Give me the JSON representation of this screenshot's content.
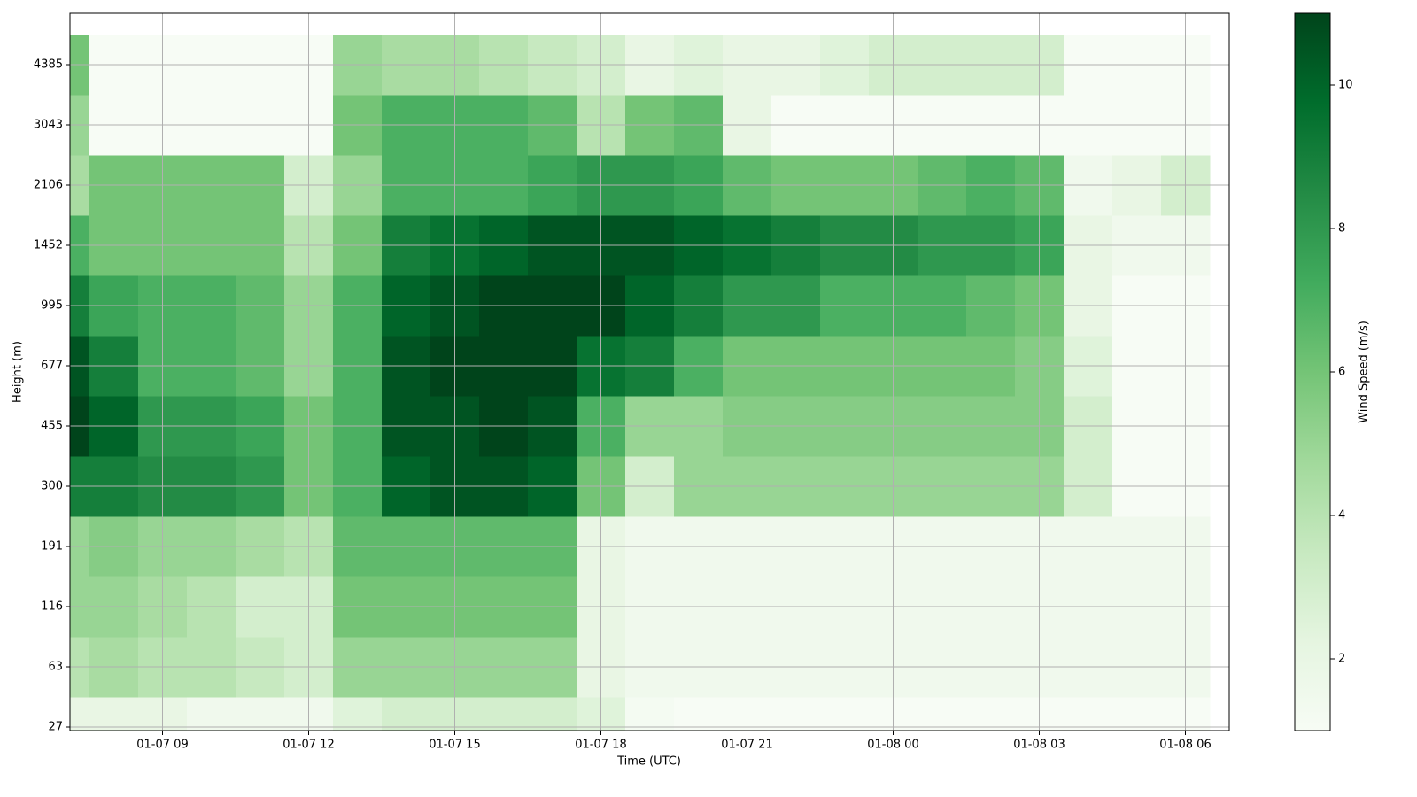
{
  "chart_data": {
    "type": "heatmap",
    "xlabel": "Time (UTC)",
    "ylabel": "Height (m)",
    "colorbar_label": "Wind Speed (m/s)",
    "colormap": "Greens",
    "grid": true,
    "x": [
      7,
      8,
      9,
      10,
      11,
      12,
      13,
      14,
      15,
      16,
      17,
      18,
      19,
      20,
      21,
      22,
      23,
      24,
      25,
      26,
      27,
      28,
      29,
      30
    ],
    "xlim": [
      7.1,
      30.9
    ],
    "xticks": [
      {
        "value": 9,
        "label": "01-07 09"
      },
      {
        "value": 12,
        "label": "01-07 12"
      },
      {
        "value": 15,
        "label": "01-07 15"
      },
      {
        "value": 18,
        "label": "01-07 18"
      },
      {
        "value": 21,
        "label": "01-07 21"
      },
      {
        "value": 24,
        "label": "01-08 00"
      },
      {
        "value": 27,
        "label": "01-08 03"
      },
      {
        "value": 30,
        "label": "01-08 06"
      }
    ],
    "y": [
      27,
      63,
      116,
      191,
      300,
      455,
      677,
      995,
      1452,
      2106,
      3043,
      4385
    ],
    "z": [
      [
        2,
        2,
        2,
        1.5,
        1.5,
        1.5,
        2.5,
        3,
        3,
        3,
        3,
        2.5,
        1.2,
        1,
        1,
        1,
        1,
        1,
        1,
        1,
        1,
        1,
        1,
        1
      ],
      [
        4,
        4.5,
        4,
        4,
        3.5,
        3,
        5,
        5,
        5,
        5,
        5,
        2,
        1.5,
        1.5,
        1.5,
        1.5,
        1.5,
        1.5,
        1.5,
        1.5,
        1.5,
        1.5,
        1.5,
        1.5
      ],
      [
        5,
        5,
        4.5,
        4,
        3,
        3,
        6,
        6,
        6,
        6,
        6,
        2,
        1.5,
        1.5,
        1.5,
        1.5,
        1.5,
        1.5,
        1.5,
        1.5,
        1.5,
        1.5,
        1.5,
        1.5
      ],
      [
        5,
        5.5,
        5,
        5,
        4.5,
        4,
        6.5,
        6.5,
        6.5,
        6.5,
        6.5,
        2,
        1.5,
        1.5,
        1.5,
        1.5,
        1.5,
        1.5,
        1.5,
        1.5,
        1.5,
        1.5,
        1.5,
        1.5
      ],
      [
        9,
        9,
        8.5,
        8.5,
        8,
        6,
        7,
        10,
        10.5,
        10.5,
        10,
        6,
        3,
        5,
        5,
        5,
        5,
        5,
        5,
        5,
        5,
        3,
        1,
        1
      ],
      [
        11,
        10,
        8,
        8,
        7.5,
        6,
        7,
        10.5,
        10.5,
        11,
        10.5,
        7,
        5,
        5,
        5.5,
        5.5,
        5.5,
        5.5,
        5.5,
        5.5,
        5.5,
        3,
        1,
        1
      ],
      [
        10.5,
        9,
        7,
        7,
        6.5,
        5,
        7,
        10.5,
        11,
        11,
        11,
        9.5,
        9,
        7,
        6,
        6,
        6,
        6,
        6,
        6,
        5.5,
        2.5,
        1,
        1
      ],
      [
        9,
        7.5,
        7,
        7,
        6.5,
        5,
        7,
        10,
        10.5,
        11,
        11,
        11,
        10,
        9,
        8,
        8,
        7,
        7,
        7,
        6.5,
        6,
        2,
        1,
        1
      ],
      [
        7,
        6,
        6,
        6,
        6,
        4,
        6,
        9,
        9.5,
        10,
        10.5,
        10.5,
        10.5,
        10,
        9.5,
        9,
        8.5,
        8.5,
        8,
        8,
        7.5,
        2,
        1.5,
        1.5
      ],
      [
        4.5,
        6,
        6,
        6,
        6,
        3,
        5,
        7,
        7,
        7,
        7.5,
        8,
        8,
        7.5,
        6.5,
        6,
        6,
        6,
        6.5,
        7,
        6.5,
        1.5,
        2,
        3
      ],
      [
        5,
        1,
        1,
        1,
        1,
        1,
        6,
        7,
        7,
        7,
        6.5,
        4,
        6,
        6.5,
        2,
        1,
        1,
        1,
        1,
        1,
        1,
        1,
        1,
        1
      ],
      [
        6,
        1,
        1,
        1,
        1,
        1,
        5,
        4.5,
        4.5,
        4,
        3.5,
        3,
        2,
        2.5,
        2,
        2,
        2.5,
        3,
        3,
        3,
        3,
        1,
        1,
        1
      ]
    ],
    "zlim": [
      1,
      11
    ],
    "zticks": [
      2,
      4,
      6,
      8,
      10
    ]
  }
}
